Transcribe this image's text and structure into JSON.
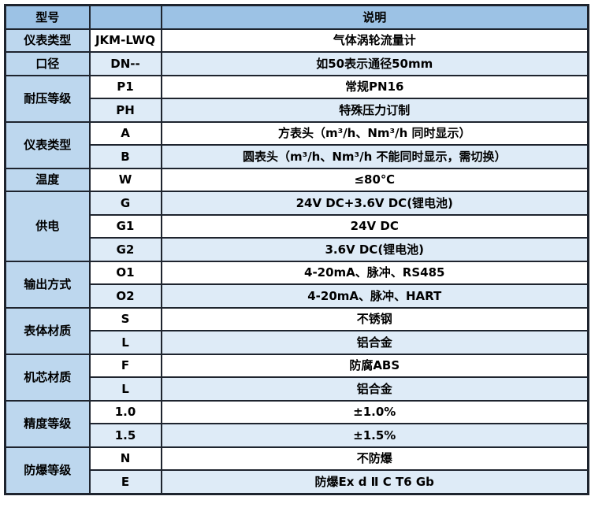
{
  "table": {
    "header": {
      "model": "型号",
      "code": "",
      "desc": "说明"
    },
    "groups": [
      {
        "label": "仪表类型",
        "rows": [
          {
            "code": "JKM-LWQ",
            "desc": "气体涡轮流量计"
          }
        ]
      },
      {
        "label": "口径",
        "rows": [
          {
            "code": "DN--",
            "desc": "如50表示通径50mm"
          }
        ]
      },
      {
        "label": "耐压等级",
        "rows": [
          {
            "code": "P1",
            "desc": "常规PN16"
          },
          {
            "code": "PH",
            "desc": "特殊压力订制"
          }
        ]
      },
      {
        "label": "仪表类型",
        "rows": [
          {
            "code": "A",
            "desc": "方表头（m³/h、Nm³/h 同时显示）"
          },
          {
            "code": "B",
            "desc": "圆表头（m³/h、Nm³/h 不能同时显示，需切换）"
          }
        ]
      },
      {
        "label": "温度",
        "rows": [
          {
            "code": "W",
            "desc": "≤80℃"
          }
        ]
      },
      {
        "label": "供电",
        "rows": [
          {
            "code": "G",
            "desc": "24V DC+3.6V DC(锂电池)"
          },
          {
            "code": "G1",
            "desc": "24V DC"
          },
          {
            "code": "G2",
            "desc": "3.6V DC(锂电池)"
          }
        ]
      },
      {
        "label": "输出方式",
        "rows": [
          {
            "code": "O1",
            "desc": "4-20mA、脉冲、RS485"
          },
          {
            "code": "O2",
            "desc": "4-20mA、脉冲、HART"
          }
        ]
      },
      {
        "label": "表体材质",
        "rows": [
          {
            "code": "S",
            "desc": "不锈钢"
          },
          {
            "code": "L",
            "desc": "铝合金"
          }
        ]
      },
      {
        "label": "机芯材质",
        "rows": [
          {
            "code": "F",
            "desc": "防腐ABS"
          },
          {
            "code": "L",
            "desc": "铝合金"
          }
        ]
      },
      {
        "label": "精度等级",
        "rows": [
          {
            "code": "1.0",
            "desc": "±1.0%"
          },
          {
            "code": "1.5",
            "desc": "±1.5%"
          }
        ]
      },
      {
        "label": "防爆等级",
        "rows": [
          {
            "code": "N",
            "desc": "不防爆"
          },
          {
            "code": "E",
            "desc": "防爆Ex d Ⅱ C T6 Gb"
          }
        ]
      }
    ],
    "colors": {
      "header_bg": "#9CC2E5",
      "group_bg": "#BDD7EE",
      "stripe_bg": "#DEEBF7",
      "white_bg": "#FFFFFF",
      "border": "#1E242E",
      "text": "#000000"
    }
  }
}
